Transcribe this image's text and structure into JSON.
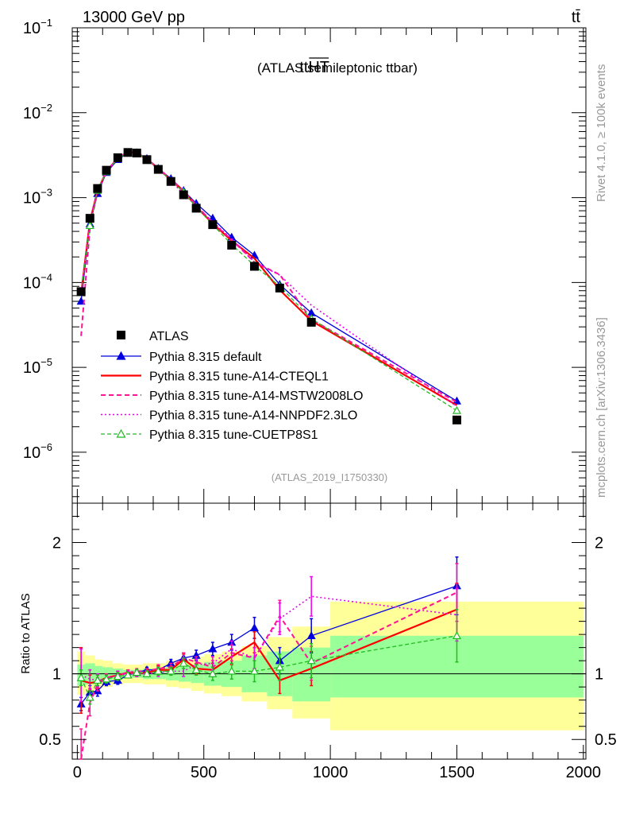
{
  "header": {
    "energy_label": "13000 GeV pp",
    "process_label": "tt̄"
  },
  "side_labels": {
    "rivet": "Rivet 4.1.0, ≥ 100k events",
    "mcplots": "mcplots.cern.ch [arXiv:1306.3436]"
  },
  "chart_data": {
    "type": "line",
    "title_main": "tt",
    "title_over": "HT",
    "title_rest": "(ATLAS semileptonic ttbar)",
    "analysis_id": "(ATLAS_2019_I1750330)",
    "xlabel": "",
    "ylabel_ratio": "Ratio to ATLAS",
    "xlim": [
      -20,
      2010
    ],
    "main_ylim_log10": [
      -6.6,
      -1.0
    ],
    "ratio_ylim": [
      0.35,
      2.3
    ],
    "x_ticks": [
      "0",
      "500",
      "1000",
      "1500",
      "2000"
    ],
    "main_y_ticks": [
      {
        "base": "10",
        "exp": "−1"
      },
      {
        "base": "10",
        "exp": "−2"
      },
      {
        "base": "10",
        "exp": "−3"
      },
      {
        "base": "10",
        "exp": "−4"
      },
      {
        "base": "10",
        "exp": "−5"
      },
      {
        "base": "10",
        "exp": "−6"
      }
    ],
    "ratio_y_ticks": [
      "2",
      "1",
      "0.5"
    ],
    "x": [
      15,
      50,
      80,
      115,
      160,
      200,
      235,
      275,
      320,
      370,
      420,
      470,
      535,
      610,
      700,
      800,
      925,
      1500
    ],
    "band_edges": [
      0,
      30,
      70,
      100,
      140,
      180,
      220,
      260,
      300,
      350,
      400,
      450,
      500,
      570,
      650,
      750,
      850,
      1000,
      2000
    ],
    "band_inner": [
      [
        0.91,
        1.07
      ],
      [
        0.92,
        1.08
      ],
      [
        0.94,
        1.06
      ],
      [
        0.95,
        1.05
      ],
      [
        0.96,
        1.04
      ],
      [
        0.97,
        1.03
      ],
      [
        0.97,
        1.03
      ],
      [
        0.96,
        1.04
      ],
      [
        0.96,
        1.04
      ],
      [
        0.95,
        1.05
      ],
      [
        0.94,
        1.06
      ],
      [
        0.93,
        1.07
      ],
      [
        0.91,
        1.09
      ],
      [
        0.9,
        1.1
      ],
      [
        0.86,
        1.14
      ],
      [
        0.83,
        1.17
      ],
      [
        0.79,
        1.2
      ],
      [
        0.82,
        1.29
      ]
    ],
    "band_outer": [
      [
        0.84,
        1.17
      ],
      [
        0.86,
        1.14
      ],
      [
        0.89,
        1.11
      ],
      [
        0.9,
        1.1
      ],
      [
        0.92,
        1.08
      ],
      [
        0.93,
        1.07
      ],
      [
        0.93,
        1.07
      ],
      [
        0.92,
        1.08
      ],
      [
        0.92,
        1.08
      ],
      [
        0.9,
        1.1
      ],
      [
        0.89,
        1.11
      ],
      [
        0.87,
        1.13
      ],
      [
        0.85,
        1.15
      ],
      [
        0.83,
        1.17
      ],
      [
        0.79,
        1.21
      ],
      [
        0.73,
        1.28
      ],
      [
        0.66,
        1.36
      ],
      [
        0.57,
        1.55
      ]
    ],
    "atlas": [
      7.8e-05,
      0.00057,
      0.00128,
      0.0021,
      0.00295,
      0.0034,
      0.00335,
      0.0028,
      0.00215,
      0.00155,
      0.00108,
      0.00075,
      0.00048,
      0.000275,
      0.000155,
      8.6e-05,
      3.4e-05,
      2.4e-06
    ],
    "series": [
      {
        "name": "Pythia 8.315 default",
        "color": "#0000e0",
        "dash": "",
        "marker": "triangle-filled",
        "width": 1.3,
        "ratio": [
          0.77,
          0.86,
          0.87,
          0.94,
          0.95,
          0.99,
          1.01,
          1.03,
          1.03,
          1.08,
          1.12,
          1.14,
          1.19,
          1.24,
          1.35,
          1.1,
          1.29,
          1.67
        ],
        "err": [
          0.05,
          0.05,
          0.04,
          0.03,
          0.03,
          0.02,
          0.02,
          0.02,
          0.03,
          0.03,
          0.04,
          0.04,
          0.05,
          0.06,
          0.08,
          0.1,
          0.13,
          0.22
        ]
      },
      {
        "name": "Pythia 8.315 tune-A14-CTEQL1",
        "color": "#ff0000",
        "dash": "",
        "marker": "none",
        "width": 2.2,
        "ratio": [
          0.95,
          0.93,
          0.94,
          0.97,
          0.99,
          1.01,
          1.0,
          1.01,
          1.03,
          1.03,
          1.11,
          1.04,
          1.03,
          1.13,
          1.24,
          0.95,
          1.04,
          1.49
        ],
        "err": [
          0.25,
          0.06,
          0.05,
          0.03,
          0.03,
          0.02,
          0.02,
          0.02,
          0.03,
          0.03,
          0.04,
          0.04,
          0.05,
          0.06,
          0.08,
          0.1,
          0.13,
          0.2
        ]
      },
      {
        "name": "Pythia 8.315 tune-A14-MSTW2008LO",
        "color": "#ff1493",
        "dash": "6,4",
        "marker": "none",
        "width": 2.0,
        "ratio": [
          0.3,
          0.78,
          0.92,
          0.97,
          0.99,
          1.01,
          1.02,
          1.02,
          1.04,
          1.05,
          1.12,
          1.09,
          1.05,
          1.16,
          1.12,
          1.44,
          1.08,
          1.62
        ],
        "err": [
          0.28,
          0.1,
          0.05,
          0.03,
          0.03,
          0.02,
          0.02,
          0.02,
          0.03,
          0.03,
          0.04,
          0.04,
          0.05,
          0.06,
          0.08,
          0.12,
          0.13,
          0.22
        ]
      },
      {
        "name": "Pythia 8.315 tune-A14-NNPDF2.3LO",
        "color": "#ee00ee",
        "dash": "2,3",
        "marker": "none",
        "width": 1.6,
        "ratio": [
          0.99,
          0.96,
          0.95,
          0.96,
          0.99,
          1.0,
          1.0,
          1.0,
          1.01,
          1.02,
          1.02,
          1.07,
          1.08,
          1.19,
          1.12,
          1.42,
          1.59,
          1.45
        ],
        "err": [
          0.2,
          0.07,
          0.05,
          0.03,
          0.03,
          0.02,
          0.02,
          0.02,
          0.03,
          0.03,
          0.04,
          0.04,
          0.05,
          0.06,
          0.08,
          0.12,
          0.15,
          0.2
        ]
      },
      {
        "name": "Pythia 8.315 tune-CUETP8S1",
        "color": "#22bb22",
        "dash": "5,3",
        "marker": "triangle-open",
        "width": 1.3,
        "ratio": [
          0.97,
          0.82,
          0.95,
          0.96,
          0.98,
          0.99,
          1.01,
          1.0,
          1.02,
          1.02,
          1.08,
          1.03,
          1.0,
          1.02,
          1.02,
          1.05,
          1.1,
          1.29
        ],
        "err": [
          0.06,
          0.05,
          0.04,
          0.03,
          0.03,
          0.02,
          0.02,
          0.02,
          0.03,
          0.03,
          0.04,
          0.04,
          0.05,
          0.06,
          0.08,
          0.1,
          0.13,
          0.2
        ]
      }
    ],
    "legend": {
      "placement": "bottom-left",
      "atlas_label": "ATLAS",
      "entries": [
        "Pythia 8.315 default",
        "Pythia 8.315 tune-A14-CTEQL1",
        "Pythia 8.315 tune-A14-MSTW2008LO",
        "Pythia 8.315 tune-A14-NNPDF2.3LO",
        "Pythia 8.315 tune-CUETP8S1"
      ]
    },
    "band_colors": {
      "inner": "#99ff99",
      "outer": "#ffff99"
    }
  }
}
